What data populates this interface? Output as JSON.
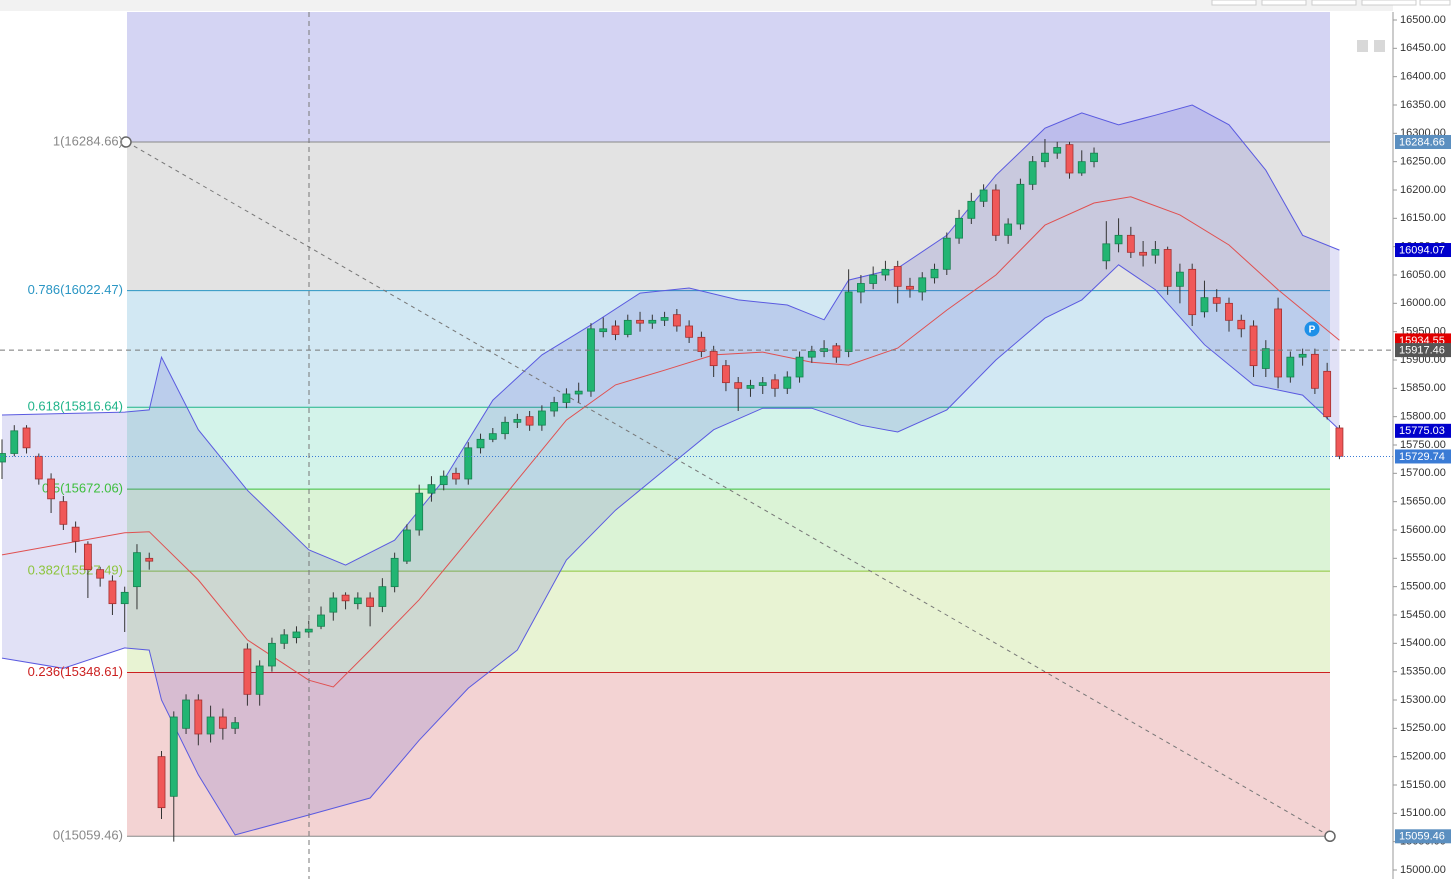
{
  "chart_data": {
    "type": "candlestick",
    "up_color": "#22b573",
    "down_color": "#f05858",
    "ylim": [
      14984.1,
      16514.1
    ],
    "yticks": [
      {
        "value": 16500,
        "label": "16500.00"
      },
      {
        "value": 16450,
        "label": "16450.00"
      },
      {
        "value": 16400,
        "label": "16400.00"
      },
      {
        "value": 16350,
        "label": "16350.00"
      },
      {
        "value": 16300,
        "label": "16300.00"
      },
      {
        "value": 16250,
        "label": "16250.00"
      },
      {
        "value": 16200,
        "label": "16200.00"
      },
      {
        "value": 16150,
        "label": "16150.00"
      },
      {
        "value": 16100,
        "label": "16100.00"
      },
      {
        "value": 16050,
        "label": "16050.00"
      },
      {
        "value": 16000,
        "label": "16000.00"
      },
      {
        "value": 15950,
        "label": "15950.00"
      },
      {
        "value": 15900,
        "label": "15900.00"
      },
      {
        "value": 15850,
        "label": "15850.00"
      },
      {
        "value": 15800,
        "label": "15800.00"
      },
      {
        "value": 15750,
        "label": "15750.00"
      },
      {
        "value": 15700,
        "label": "15700.00"
      },
      {
        "value": 15650,
        "label": "15650.00"
      },
      {
        "value": 15600,
        "label": "15600.00"
      },
      {
        "value": 15550,
        "label": "15550.00"
      },
      {
        "value": 15500,
        "label": "15500.00"
      },
      {
        "value": 15450,
        "label": "15450.00"
      },
      {
        "value": 15400,
        "label": "15400.00"
      },
      {
        "value": 15350,
        "label": "15350.00"
      },
      {
        "value": 15300,
        "label": "15300.00"
      },
      {
        "value": 15250,
        "label": "15250.00"
      },
      {
        "value": 15200,
        "label": "15200.00"
      },
      {
        "value": 15150,
        "label": "15150.00"
      },
      {
        "value": 15100,
        "label": "15100.00"
      },
      {
        "value": 15050,
        "label": "15050.00"
      },
      {
        "value": 15000,
        "label": "15000.00"
      }
    ],
    "open": [
      15720,
      15735,
      15780,
      15730,
      15690,
      15650,
      15605,
      15575,
      15530,
      15510,
      15470,
      15500,
      15550,
      15200,
      15130,
      15250,
      15300,
      15240,
      15270,
      15250,
      15390,
      15310,
      15360,
      15400,
      15410,
      15420,
      15430,
      15455,
      15485,
      15470,
      15480,
      15465,
      15500,
      15545,
      15600,
      15665,
      15680,
      15700,
      15690,
      15745,
      15760,
      15770,
      15790,
      15800,
      15785,
      15810,
      15825,
      15840,
      15845,
      15950,
      15960,
      15945,
      15970,
      15965,
      15970,
      15980,
      15960,
      15940,
      15915,
      15890,
      15860,
      15850,
      15855,
      15865,
      15850,
      15870,
      15905,
      15915,
      15925,
      15915,
      16020,
      16035,
      16050,
      16065,
      16030,
      16020,
      16045,
      16060,
      16115,
      16150,
      16180,
      16200,
      16120,
      16140,
      16210,
      16250,
      16265,
      16280,
      16230,
      16250,
      16075,
      16105,
      16120,
      16090,
      16085,
      16095,
      16030,
      16060,
      15985,
      16010,
      16000,
      15970,
      15960,
      15885,
      15990,
      15870,
      15905,
      15910,
      15880,
      15780
    ],
    "high": [
      15760,
      15785,
      15785,
      15735,
      15700,
      15660,
      15615,
      15580,
      15535,
      15520,
      15500,
      15575,
      15560,
      15210,
      15280,
      15310,
      15310,
      15290,
      15285,
      15270,
      15400,
      15370,
      15410,
      15425,
      15430,
      15440,
      15465,
      15490,
      15490,
      15490,
      15490,
      15515,
      15560,
      15610,
      15680,
      15695,
      15705,
      15710,
      15755,
      15770,
      15780,
      15800,
      15805,
      15810,
      15820,
      15835,
      15850,
      15860,
      15965,
      15975,
      15970,
      15980,
      15985,
      15980,
      15985,
      15990,
      15970,
      15950,
      15925,
      15900,
      15870,
      15865,
      15870,
      15875,
      15880,
      15915,
      15925,
      15935,
      15930,
      16060,
      16050,
      16065,
      16075,
      16075,
      16045,
      16055,
      16070,
      16125,
      16165,
      16195,
      16210,
      16210,
      16150,
      16220,
      16260,
      16290,
      16285,
      16285,
      16270,
      16275,
      16145,
      16150,
      16135,
      16110,
      16110,
      16100,
      16070,
      16070,
      16040,
      16025,
      16010,
      15980,
      15970,
      15935,
      16010,
      15915,
      15920,
      15920,
      15895,
      15785
    ],
    "low": [
      15690,
      15730,
      15735,
      15680,
      15630,
      15600,
      15560,
      15480,
      15500,
      15450,
      15420,
      15460,
      15530,
      15090,
      15050,
      15240,
      15220,
      15225,
      15230,
      15240,
      15290,
      15290,
      15350,
      15390,
      15400,
      15410,
      15425,
      15440,
      15460,
      15460,
      15430,
      15455,
      15490,
      15540,
      15590,
      15650,
      15670,
      15680,
      15680,
      15735,
      15755,
      15760,
      15780,
      15775,
      15775,
      15800,
      15815,
      15825,
      15835,
      15940,
      15935,
      15940,
      15950,
      15955,
      15960,
      15950,
      15930,
      15905,
      15870,
      15845,
      15810,
      15835,
      15840,
      15835,
      15840,
      15860,
      15895,
      15905,
      15895,
      15905,
      16000,
      16025,
      16040,
      16000,
      16010,
      16005,
      16035,
      16050,
      16105,
      16140,
      16170,
      16110,
      16105,
      16130,
      16200,
      16240,
      16255,
      16220,
      16225,
      16240,
      16060,
      16090,
      16080,
      16065,
      16070,
      16015,
      16000,
      15960,
      15975,
      15985,
      15950,
      15940,
      15870,
      15870,
      15850,
      15860,
      15890,
      15840,
      15795,
      15725
    ],
    "close": [
      15735,
      15775,
      15745,
      15690,
      15655,
      15610,
      15580,
      15530,
      15515,
      15470,
      15490,
      15560,
      15545,
      15110,
      15270,
      15300,
      15240,
      15270,
      15250,
      15260,
      15310,
      15360,
      15400,
      15415,
      15420,
      15425,
      15450,
      15480,
      15475,
      15480,
      15465,
      15500,
      15550,
      15600,
      15665,
      15680,
      15695,
      15690,
      15745,
      15760,
      15770,
      15790,
      15795,
      15785,
      15810,
      15825,
      15840,
      15845,
      15955,
      15955,
      15945,
      15970,
      15965,
      15970,
      15975,
      15960,
      15940,
      15915,
      15890,
      15860,
      15850,
      15855,
      15860,
      15850,
      15870,
      15905,
      15915,
      15920,
      15905,
      16020,
      16035,
      16050,
      16060,
      16030,
      16025,
      16045,
      16060,
      16115,
      16150,
      16180,
      16200,
      16120,
      16140,
      16210,
      16250,
      16265,
      16275,
      16230,
      16250,
      16265,
      16105,
      16120,
      16090,
      16085,
      16095,
      16030,
      16055,
      15980,
      16010,
      16000,
      15970,
      15955,
      15890,
      15920,
      15870,
      15905,
      15910,
      15850,
      15800,
      15730
    ],
    "bands": [
      {
        "color": "#5a5ae0",
        "x": [
          0,
          10,
          12,
          13,
          16,
          20,
          25,
          28,
          32,
          36,
          40,
          44,
          48,
          52,
          56,
          60,
          64,
          67,
          69,
          73,
          77,
          81,
          85,
          88,
          91,
          94,
          97,
          100,
          103,
          106,
          109
        ],
        "values": [
          15803,
          15808,
          15812,
          15905,
          15777,
          15670,
          15565,
          15538,
          15582,
          15688,
          15829,
          15909,
          15962,
          16018,
          16027,
          16006,
          15997,
          15971,
          16041,
          16062,
          16120,
          16226,
          16309,
          16336,
          16315,
          16332,
          16350,
          16315,
          16235,
          16120,
          16094
        ]
      },
      {
        "color": "#e05050",
        "x": [
          0,
          10,
          12,
          16,
          20,
          25,
          27,
          30,
          34,
          38,
          42,
          46,
          50,
          54,
          58,
          62,
          66,
          69,
          73,
          77,
          81,
          85,
          89,
          92,
          96,
          100,
          104,
          109
        ],
        "values": [
          15556,
          15595,
          15597,
          15512,
          15406,
          15335,
          15323,
          15388,
          15477,
          15582,
          15688,
          15794,
          15856,
          15882,
          15909,
          15914,
          15896,
          15891,
          15921,
          15988,
          16050,
          16138,
          16177,
          16188,
          16156,
          16103,
          16024,
          15935
        ]
      },
      {
        "color": "#5a5ae0",
        "x": [
          0,
          5,
          10,
          12,
          13,
          16,
          19,
          25,
          30,
          34,
          38,
          42,
          46,
          50,
          54,
          58,
          62,
          66,
          70,
          73,
          77,
          81,
          85,
          88,
          91,
          94,
          98,
          102,
          106,
          109
        ],
        "values": [
          15374,
          15356,
          15392,
          15388,
          15300,
          15168,
          15062,
          15097,
          15127,
          15229,
          15321,
          15388,
          15547,
          15635,
          15706,
          15777,
          15815,
          15815,
          15785,
          15773,
          15812,
          15900,
          15974,
          16006,
          16068,
          16024,
          15927,
          15856,
          15838,
          15777
        ]
      }
    ],
    "fib_levels": [
      {
        "label": "1(16284.66)",
        "value": 16284.66,
        "color": "#888888",
        "fill": "#e3e3e3"
      },
      {
        "label": "0.786(16022.47)",
        "value": 16022.47,
        "color": "#2a96c4",
        "fill": "#d2e8f3"
      },
      {
        "label": "0.618(15816.64)",
        "value": 15816.64,
        "color": "#20b48a",
        "fill": "#d3f3ea"
      },
      {
        "label": "0.5(15672.06)",
        "value": 15672.06,
        "color": "#3cbe3c",
        "fill": "#dbf3d6"
      },
      {
        "label": "0.382(15527.49)",
        "value": 15527.49,
        "color": "#8cc43c",
        "fill": "#e8f3d3"
      },
      {
        "label": "0.236(15348.61)",
        "value": 15348.61,
        "color": "#cc2020",
        "fill": "#f3d3d3"
      },
      {
        "label": "0(15059.46)",
        "value": 15059.46,
        "color": "#888888"
      }
    ],
    "price_tags": [
      {
        "value": 16284.66,
        "color": "#5b8fc0"
      },
      {
        "value": 16094.07,
        "color": "#0000cc"
      },
      {
        "value": 15934.55,
        "color": "#e00000"
      },
      {
        "value": 15917.46,
        "color": "#555555",
        "line": "dashed"
      },
      {
        "value": 15775.03,
        "color": "#0000cc"
      },
      {
        "value": 15729.74,
        "color": "#3a7bd5",
        "line": "dotted"
      },
      {
        "value": 15059.46,
        "color": "#5b8fc0"
      }
    ],
    "annotation": "P"
  }
}
